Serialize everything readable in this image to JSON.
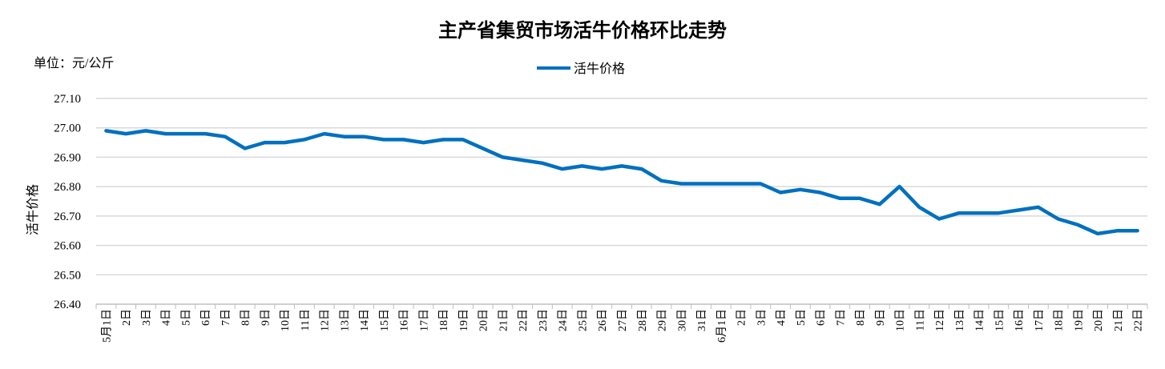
{
  "chart_data": {
    "type": "line",
    "title": "主产省集贸市场活牛价格环比走势",
    "unit_label": "单位：元/公斤",
    "ylabel": "活牛价格",
    "xlabel": "",
    "ylim": [
      26.4,
      27.1
    ],
    "yticks": [
      "26.40",
      "26.50",
      "26.60",
      "26.70",
      "26.80",
      "26.90",
      "27.00",
      "27.10"
    ],
    "grid": true,
    "legend_position": "top-center",
    "series_color": "#0070C0",
    "categories": [
      "5月1日",
      "2日",
      "3日",
      "4日",
      "5日",
      "6日",
      "7日",
      "8日",
      "9日",
      "10日",
      "11日",
      "12日",
      "13日",
      "14日",
      "15日",
      "16日",
      "17日",
      "18日",
      "19日",
      "20日",
      "21日",
      "22日",
      "23日",
      "24日",
      "25日",
      "26日",
      "27日",
      "28日",
      "29日",
      "30日",
      "31日",
      "6月1日",
      "2日",
      "3日",
      "4日",
      "5日",
      "6日",
      "7日",
      "8日",
      "9日",
      "10日",
      "11日",
      "12日",
      "13日",
      "14日",
      "15日",
      "16日",
      "17日",
      "18日",
      "19日",
      "20日",
      "21日",
      "22日"
    ],
    "series": [
      {
        "name": "活牛价格",
        "values": [
          26.99,
          26.98,
          26.99,
          26.98,
          26.98,
          26.98,
          26.97,
          26.93,
          26.95,
          26.95,
          26.96,
          26.98,
          26.97,
          26.97,
          26.96,
          26.96,
          26.95,
          26.96,
          26.96,
          26.93,
          26.9,
          26.89,
          26.88,
          26.86,
          26.87,
          26.86,
          26.87,
          26.86,
          26.82,
          26.81,
          26.81,
          26.81,
          26.81,
          26.81,
          26.78,
          26.79,
          26.78,
          26.76,
          26.76,
          26.74,
          26.8,
          26.73,
          26.69,
          26.71,
          26.71,
          26.71,
          26.72,
          26.73,
          26.69,
          26.67,
          26.64,
          26.65,
          26.65
        ]
      }
    ]
  }
}
